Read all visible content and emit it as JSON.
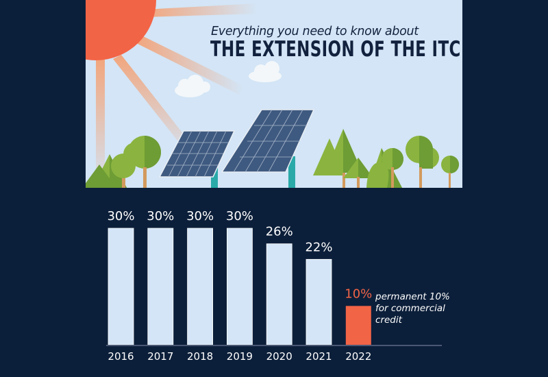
{
  "header": {
    "subtitle": "Everything you need to know about",
    "title": "THE EXTENSION OF THE ITC"
  },
  "illustration": {
    "elements": [
      "sun",
      "sun-rays",
      "clouds",
      "solar-panels",
      "trees"
    ],
    "colors": {
      "sky": "#d3e5f6",
      "sun": "#f26446",
      "ray": "#f2a57c",
      "panel": "#3f5a80",
      "stand": "#2aa9a9",
      "tree_light": "#8ab43f",
      "tree_dark": "#6e9c35",
      "trunk": "#d39a5d",
      "cloud": "#f3f7fa"
    }
  },
  "chart_data": {
    "type": "bar",
    "title": "",
    "xlabel": "",
    "ylabel": "",
    "categories": [
      "2016",
      "2017",
      "2018",
      "2019",
      "2020",
      "2021",
      "2022"
    ],
    "values": [
      30,
      30,
      30,
      30,
      26,
      22,
      10
    ],
    "data_labels": [
      "30%",
      "30%",
      "30%",
      "30%",
      "26%",
      "22%",
      "10%"
    ],
    "highlight_index": 6,
    "ylim": [
      0,
      30
    ],
    "grid": false,
    "colors": {
      "bar": "#d3e5f6",
      "highlight": "#f26446",
      "background": "#0c1f3a",
      "axis": "#4a5873"
    },
    "annotation": "permanent 10% for commercial credit"
  },
  "note": {
    "line1": "permanent 10%",
    "line2": "for commercial",
    "line3": "credit"
  }
}
